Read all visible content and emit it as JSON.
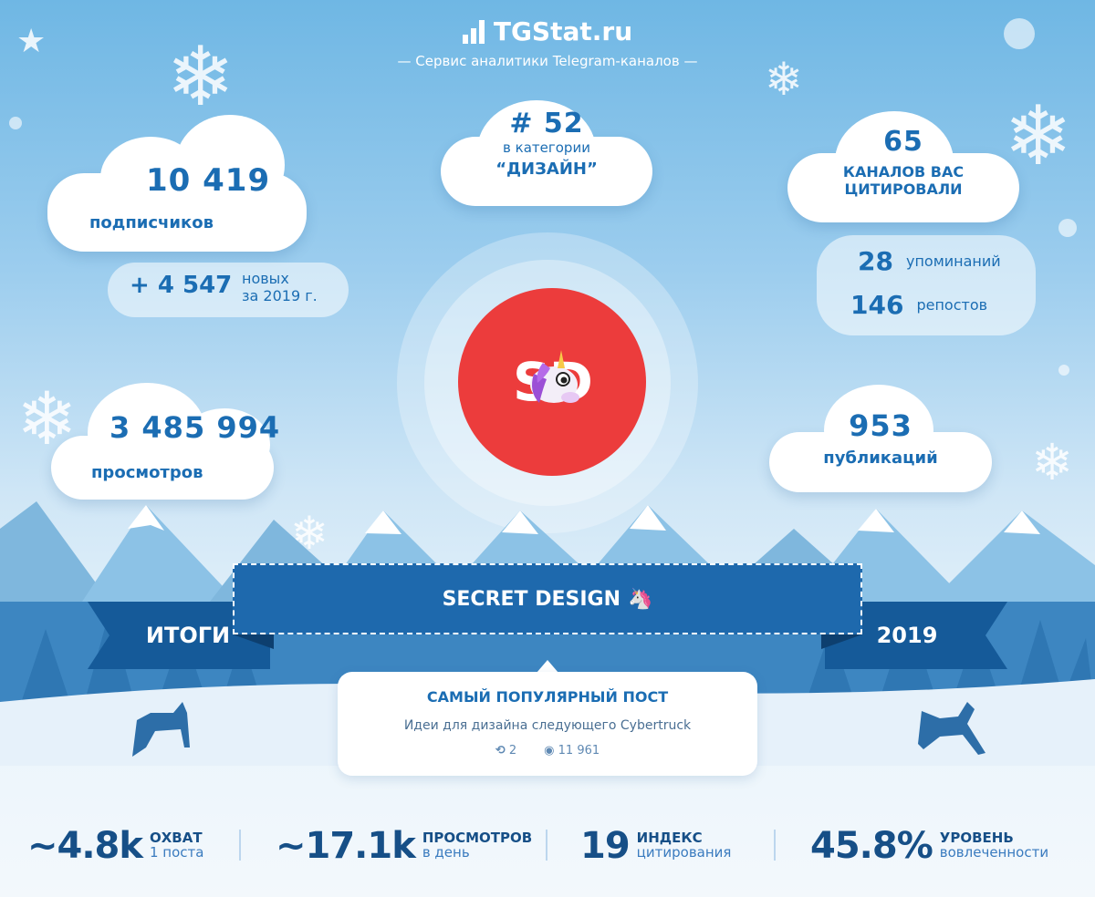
{
  "header": {
    "brand": "TGStat.ru",
    "tagline": "— Сервис аналитики Telegram-каналов —"
  },
  "subscribers": {
    "value": "10 419",
    "label": "подписчиков"
  },
  "new_subs": {
    "value": "+ 4 547",
    "label_line1": "новых",
    "label_line2": "за 2019 г."
  },
  "rank": {
    "value": "# 52",
    "label_line1": "в категории",
    "label_line2": "“ДИЗАЙН”"
  },
  "citations": {
    "value": "65",
    "label_line1": "КАНАЛОВ ВАС",
    "label_line2": "ЦИТИРОВАЛИ"
  },
  "mentions": {
    "value": "28",
    "label": "упоминаний"
  },
  "reposts": {
    "value": "146",
    "label": "репостов"
  },
  "views": {
    "value": "3 485 994",
    "label": "просмотров"
  },
  "posts": {
    "value": "953",
    "label": "публикаций"
  },
  "logo": {
    "text": "SD"
  },
  "ribbon": {
    "left": "ИТОГИ",
    "center": "SECRET DESIGN",
    "right": "2019"
  },
  "popular_post": {
    "title": "САМЫЙ ПОПУЛЯРНЫЙ ПОСТ",
    "text": "Идеи для дизайна следующего Cybertruck",
    "reposts": "2",
    "views": "11 961"
  },
  "footer": [
    {
      "value": "~4.8k",
      "label_bold": "ОХВАТ",
      "label": "1 поста"
    },
    {
      "value": "~17.1k",
      "label_bold": "ПРОСМОТРОВ",
      "label": "в день"
    },
    {
      "value": "19",
      "label_bold": "ИНДЕКС",
      "label": "цитирования"
    },
    {
      "value": "45.8%",
      "label_bold": "УРОВЕНЬ",
      "label": "вовлеченности"
    }
  ],
  "colors": {
    "accent": "#1b6db3",
    "logo_red": "#ec3c3c",
    "ribbon": "#1e69ad"
  }
}
